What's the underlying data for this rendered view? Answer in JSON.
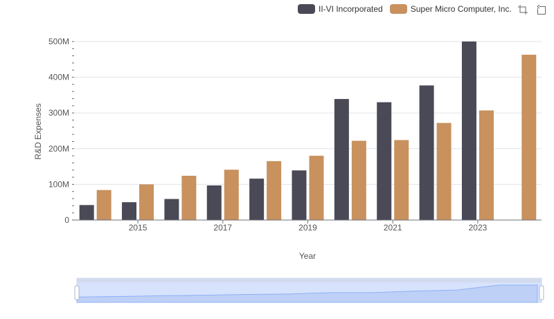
{
  "legend": {
    "items": [
      {
        "label": "II-VI Incorporated",
        "color": "#4a4956"
      },
      {
        "label": "Super Micro Computer, Inc.",
        "color": "#c8915e"
      }
    ]
  },
  "toolbox": {
    "zoom_icon": "zoom-icon",
    "restore_icon": "restore-icon"
  },
  "chart_data": {
    "type": "bar",
    "categories": [
      "2014",
      "2015",
      "2016",
      "2017",
      "2018",
      "2019",
      "2020",
      "2021",
      "2022",
      "2023",
      "2024"
    ],
    "x_tick_labels": [
      "2015",
      "2017",
      "2019",
      "2021",
      "2023"
    ],
    "xlabel": "Year",
    "ylabel": "R&D Expenses",
    "ylim": [
      0,
      500000000
    ],
    "y_ticks": [
      {
        "value": 0,
        "label": "0"
      },
      {
        "value": 100000000,
        "label": "100M"
      },
      {
        "value": 200000000,
        "label": "200M"
      },
      {
        "value": 300000000,
        "label": "300M"
      },
      {
        "value": 400000000,
        "label": "400M"
      },
      {
        "value": 500000000,
        "label": "500M"
      }
    ],
    "grid": true,
    "legend_position": "top-right",
    "series": [
      {
        "name": "II-VI Incorporated",
        "color": "#4a4956",
        "values": [
          42000000,
          50000000,
          59000000,
          97000000,
          116000000,
          139000000,
          339000000,
          330000000,
          377000000,
          500000000,
          null
        ]
      },
      {
        "name": "Super Micro Computer, Inc.",
        "color": "#c8915e",
        "values": [
          84000000,
          100000000,
          124000000,
          141000000,
          165000000,
          180000000,
          222000000,
          224000000,
          272000000,
          307000000,
          463000000
        ]
      }
    ],
    "datazoom": {
      "range_percent": [
        0,
        100
      ],
      "preview_series": "Super Micro Computer, Inc."
    }
  }
}
